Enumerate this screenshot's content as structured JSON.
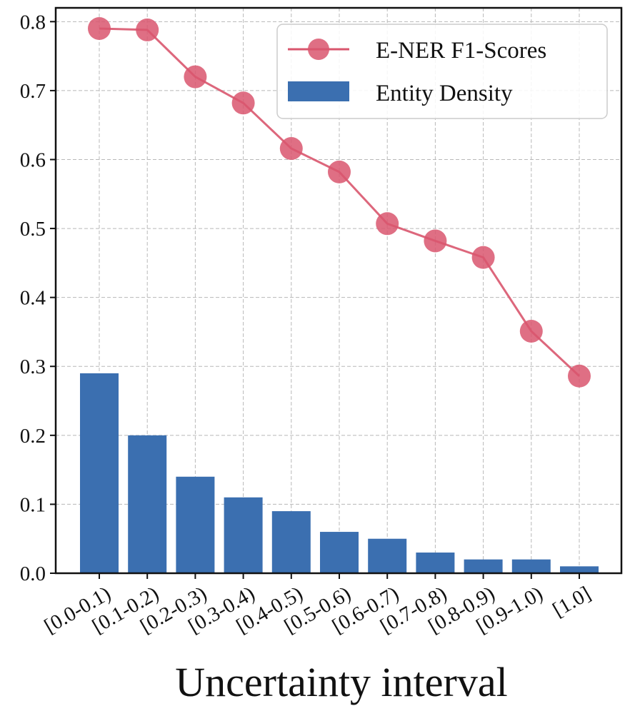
{
  "chart_data": {
    "type": "bar+line",
    "title": "",
    "xlabel": "Uncertainty interval",
    "ylabel": "",
    "ylim": [
      0,
      0.82
    ],
    "yticks": [
      "0.0",
      "0.1",
      "0.2",
      "0.3",
      "0.4",
      "0.5",
      "0.6",
      "0.7",
      "0.8"
    ],
    "grid": true,
    "legend_position": "top-right",
    "categories": [
      "[0.0-0.1)",
      "[0.1-0.2)",
      "[0.2-0.3)",
      "[0.3-0.4)",
      "[0.4-0.5)",
      "[0.5-0.6)",
      "[0.6-0.7)",
      "[0.7-0.8)",
      "[0.8-0.9)",
      "[0.9-1.0)",
      "[1.0]"
    ],
    "series": [
      {
        "name": "E-NER F1-Scores",
        "kind": "line",
        "color": "#d9566e",
        "values": [
          0.79,
          0.788,
          0.72,
          0.682,
          0.616,
          0.582,
          0.507,
          0.482,
          0.458,
          0.351,
          0.286
        ]
      },
      {
        "name": "Entity Density",
        "kind": "bar",
        "color": "#3b6fb0",
        "values": [
          0.29,
          0.2,
          0.14,
          0.11,
          0.09,
          0.06,
          0.05,
          0.03,
          0.02,
          0.02,
          0.01
        ]
      }
    ]
  }
}
